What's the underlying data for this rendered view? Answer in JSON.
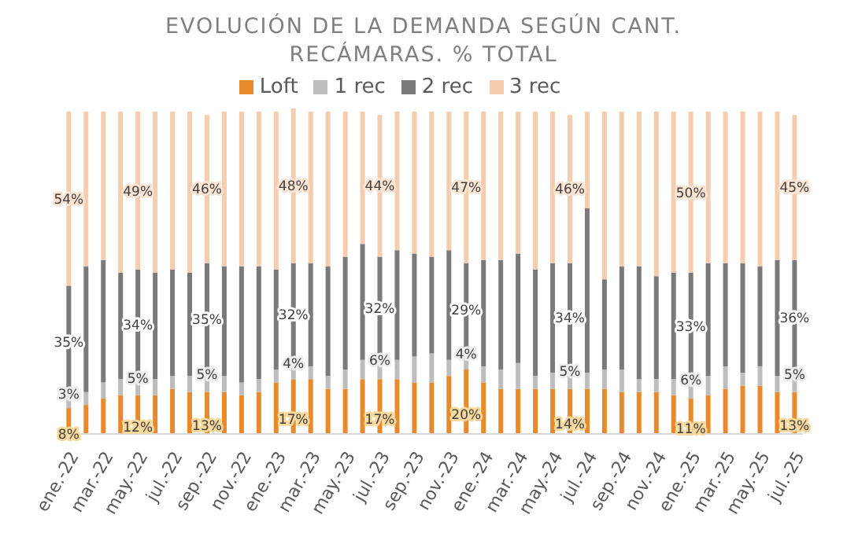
{
  "chart_data": {
    "type": "bar",
    "title": "EVOLUCIÓN DE LA DEMANDA SEGÚN CANT. RECÁMARAS. % TOTAL",
    "stacked": true,
    "legend": "top",
    "tick_labels": "x",
    "categories": [
      "ene.-22",
      null,
      "mar.-22",
      null,
      "may.-22",
      null,
      "jul.-22",
      null,
      "sep.-22",
      null,
      "nov.-22",
      null,
      "ene.-23",
      null,
      "mar.-23",
      null,
      "may.-23",
      null,
      "jul.-23",
      null,
      "sep.-23",
      null,
      "nov.-23",
      null,
      "ene.-24",
      null,
      "mar.-24",
      null,
      "may.-24",
      null,
      "jul.-24",
      null,
      "sep.-24",
      null,
      "nov.-24",
      null,
      "ene.-25",
      null,
      "mar.-25",
      null,
      "may.-25",
      null,
      "jul.-25"
    ],
    "series": [
      {
        "name": "Loft",
        "color": "#e8892b",
        "values": [
          8,
          9,
          11,
          12,
          12,
          12,
          14,
          13,
          13,
          13,
          12,
          13,
          16,
          17,
          17,
          14,
          14,
          17,
          17,
          17,
          16,
          16,
          18,
          20,
          16,
          14,
          14,
          14,
          14,
          14,
          14,
          14,
          13,
          13,
          13,
          12,
          11,
          12,
          14,
          15,
          15,
          13,
          13
        ],
        "value_labels": [
          "8%",
          null,
          null,
          null,
          "12%",
          null,
          null,
          null,
          "13%",
          null,
          null,
          null,
          null,
          "17%",
          null,
          null,
          null,
          null,
          "17%",
          null,
          null,
          null,
          null,
          "20%",
          null,
          null,
          null,
          null,
          null,
          "14%",
          null,
          null,
          null,
          null,
          null,
          null,
          "11%",
          null,
          null,
          null,
          null,
          null,
          "13%"
        ]
      },
      {
        "name": "1 rec",
        "color": "#bdbdbd",
        "values": [
          3,
          4,
          5,
          5,
          5,
          5,
          4,
          5,
          5,
          5,
          4,
          4,
          4,
          4,
          4,
          4,
          6,
          6,
          6,
          6,
          8,
          9,
          5,
          4,
          5,
          6,
          8,
          4,
          5,
          5,
          5,
          6,
          7,
          4,
          4,
          5,
          6,
          6,
          7,
          4,
          6,
          5,
          5
        ],
        "value_labels": [
          "3%",
          null,
          null,
          null,
          "5%",
          null,
          null,
          null,
          "5%",
          null,
          null,
          null,
          null,
          "4%",
          null,
          null,
          null,
          null,
          "6%",
          null,
          null,
          null,
          null,
          "4%",
          null,
          null,
          null,
          null,
          null,
          "5%",
          null,
          null,
          null,
          null,
          null,
          null,
          "6%",
          null,
          null,
          null,
          null,
          null,
          "5%"
        ]
      },
      {
        "name": "2 rec",
        "color": "#7a7a7a",
        "values": [
          35,
          39,
          38,
          33,
          34,
          33,
          33,
          32,
          35,
          34,
          36,
          35,
          31,
          32,
          32,
          34,
          35,
          36,
          32,
          34,
          32,
          30,
          34,
          29,
          33,
          34,
          34,
          33,
          34,
          34,
          51,
          28,
          32,
          35,
          32,
          33,
          33,
          35,
          32,
          34,
          31,
          36,
          36
        ],
        "value_labels": [
          "35%",
          null,
          null,
          null,
          "34%",
          null,
          null,
          null,
          "35%",
          null,
          null,
          null,
          null,
          "32%",
          null,
          null,
          null,
          null,
          "32%",
          null,
          null,
          null,
          null,
          "29%",
          null,
          null,
          null,
          null,
          null,
          "34%",
          null,
          null,
          null,
          null,
          null,
          null,
          "33%",
          null,
          null,
          null,
          null,
          null,
          "36%"
        ]
      },
      {
        "name": "3 rec",
        "color": "#f6ccae",
        "values": [
          54,
          48,
          46,
          50,
          49,
          50,
          49,
          50,
          46,
          48,
          48,
          48,
          49,
          48,
          47,
          48,
          45,
          41,
          44,
          43,
          44,
          45,
          43,
          47,
          46,
          46,
          44,
          49,
          47,
          46,
          30,
          52,
          48,
          48,
          51,
          50,
          50,
          47,
          47,
          47,
          48,
          46,
          45
        ],
        "value_labels": [
          "54%",
          null,
          null,
          null,
          "49%",
          null,
          null,
          null,
          "46%",
          null,
          null,
          null,
          null,
          "48%",
          null,
          null,
          null,
          null,
          "44%",
          null,
          null,
          null,
          null,
          "47%",
          null,
          null,
          null,
          null,
          null,
          "46%",
          null,
          null,
          null,
          null,
          null,
          null,
          "50%",
          null,
          null,
          null,
          null,
          null,
          "45%"
        ]
      }
    ]
  }
}
